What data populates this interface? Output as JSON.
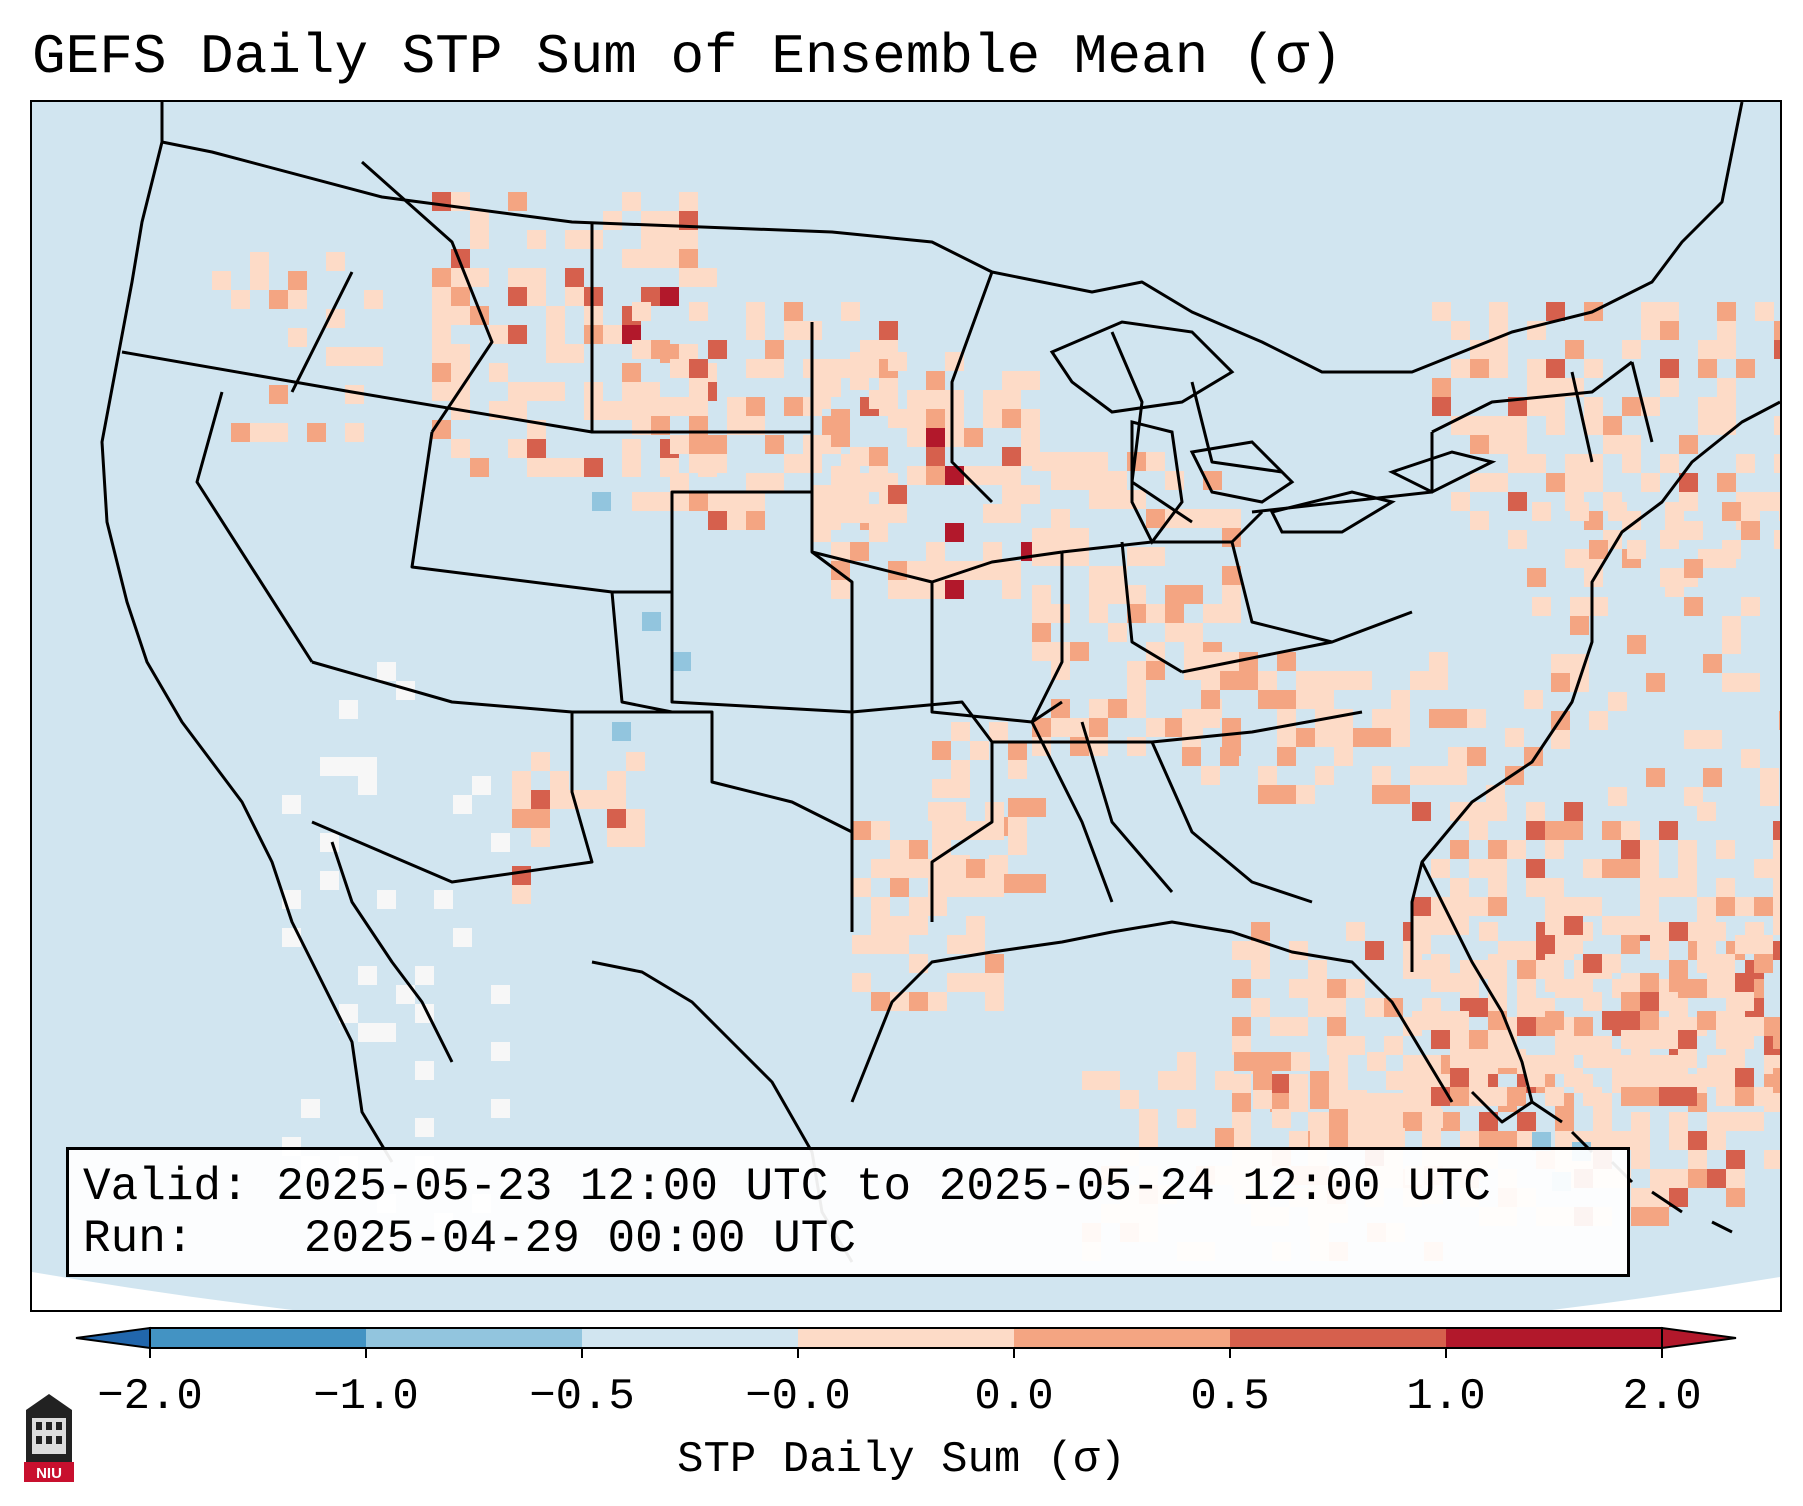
{
  "title": "GEFS Daily STP Sum of Ensemble Mean (σ)",
  "info": {
    "valid_label": "Valid:",
    "valid_value": "2025-05-23 12:00 UTC to 2025-05-24 12:00 UTC",
    "run_label": "Run:",
    "run_value": "2025-04-29 00:00 UTC"
  },
  "colorbar": {
    "label": "STP Daily Sum (σ)",
    "ticks": [
      "−2.0",
      "−1.0",
      "−0.5",
      "−0.0",
      "0.0",
      "0.5",
      "1.0",
      "2.0"
    ],
    "colors": [
      "#4393c3",
      "#92c5de",
      "#d1e5f0",
      "#f7f7f7",
      "#fddbc7",
      "#f4a582",
      "#d6604d",
      "#b2182b"
    ]
  },
  "map": {
    "background_color": "#d1e5f0",
    "region": "Continental United States"
  },
  "logo": {
    "text": "NIU",
    "icon": "university-tower-icon"
  }
}
